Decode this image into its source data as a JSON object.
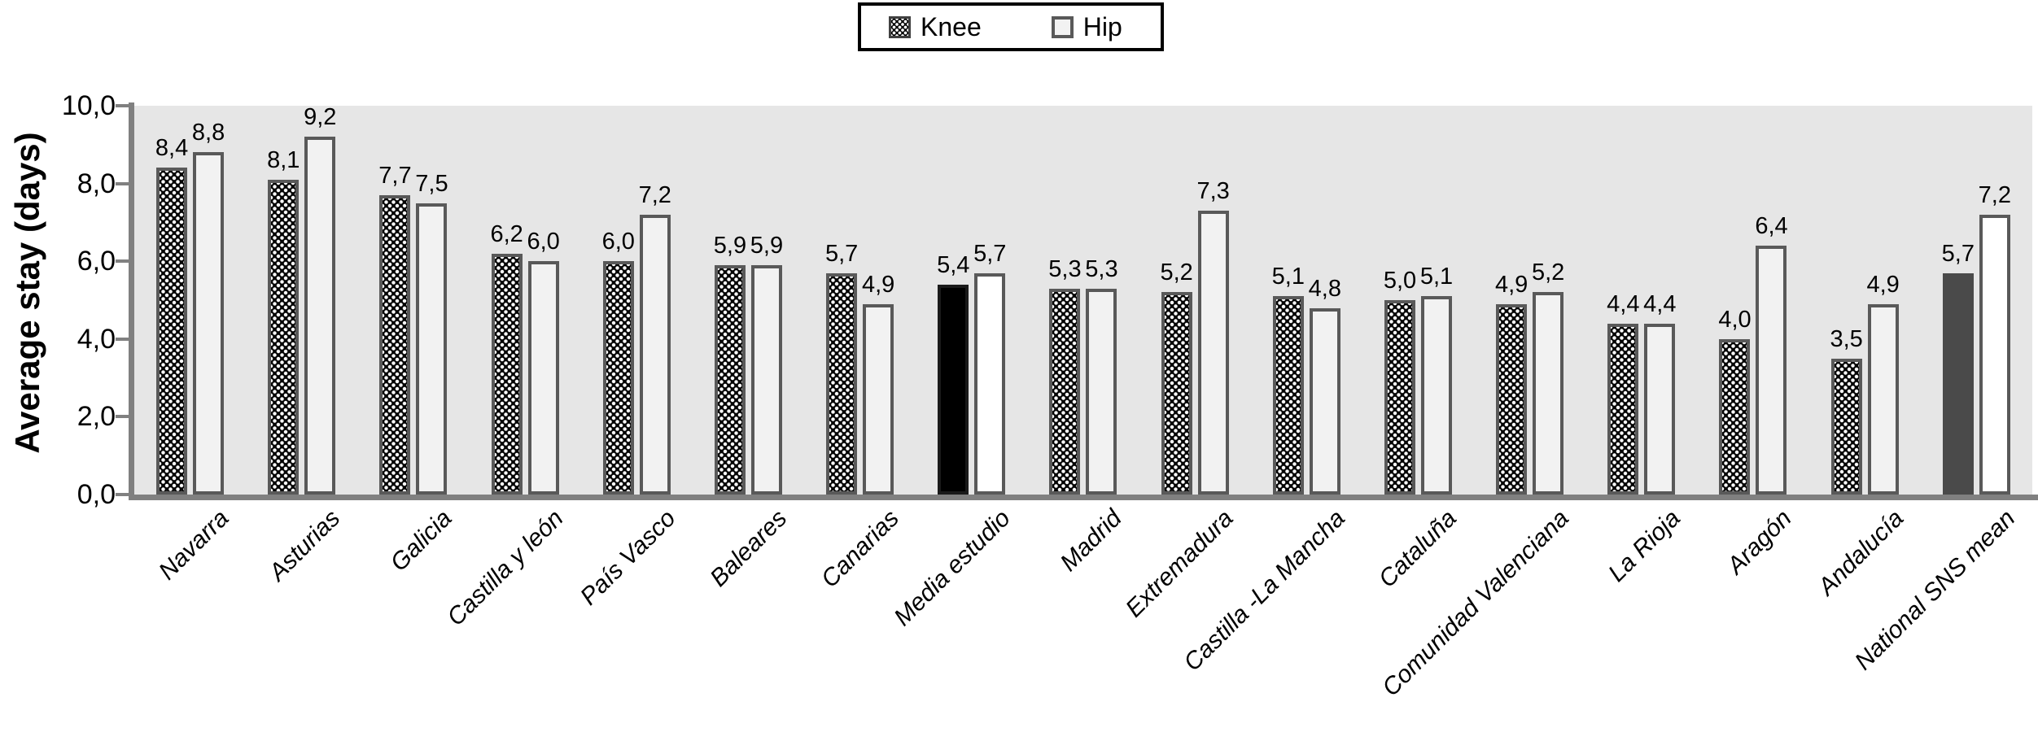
{
  "legend": {
    "items": [
      {
        "label": "Knee",
        "swatch": "knee-pattern-swatch"
      },
      {
        "label": "Hip",
        "swatch": "hip-swatch"
      }
    ]
  },
  "y_axis": {
    "title": "Average stay (days)",
    "tick_labels": [
      "0,0",
      "2,0",
      "4,0",
      "6,0",
      "8,0",
      "10,0"
    ]
  },
  "colors": {
    "plot_background": "#e6e6e6",
    "bar_border": "#595959",
    "hip_fill": "#f2f2f2",
    "knee_fill": "#050505",
    "knee_dot": "#ffffff",
    "media_estudio_knee": "#000000",
    "national_mean_knee": "#4a4a4a",
    "white_hip_fill": "#ffffff",
    "axis_line": "#808080",
    "legend_border": "#000000"
  },
  "chart_data": {
    "type": "bar",
    "title": "",
    "xlabel": "",
    "ylabel": "Average stay (days)",
    "ylim": [
      0,
      10
    ],
    "y_ticks": [
      0,
      2,
      4,
      6,
      8,
      10
    ],
    "decimal_separator": ",",
    "grid": false,
    "legend_position": "top-center",
    "series_names": [
      "Knee",
      "Hip"
    ],
    "groups": [
      {
        "category": "Navarra",
        "knee": 8.4,
        "hip": 8.8
      },
      {
        "category": "Asturias",
        "knee": 8.1,
        "hip": 9.2
      },
      {
        "category": "Galicia",
        "knee": 7.7,
        "hip": 7.5
      },
      {
        "category": "Castilla y león",
        "knee": 6.2,
        "hip": 6.0
      },
      {
        "category": "País Vasco",
        "knee": 6.0,
        "hip": 7.2
      },
      {
        "category": "Baleares",
        "knee": 5.9,
        "hip": 5.9
      },
      {
        "category": "Canarias",
        "knee": 5.7,
        "hip": 4.9
      },
      {
        "category": "Media estudio",
        "knee": 5.4,
        "hip": 5.7,
        "knee_style": "solid-black",
        "hip_style": "white"
      },
      {
        "category": "Madrid",
        "knee": 5.3,
        "hip": 5.3
      },
      {
        "category": "Extremadura",
        "knee": 5.2,
        "hip": 7.3
      },
      {
        "category": "Castilla -La Mancha",
        "knee": 5.1,
        "hip": 4.8
      },
      {
        "category": "Cataluña",
        "knee": 5.0,
        "hip": 5.1
      },
      {
        "category": "Comunidad Valenciana",
        "knee": 4.9,
        "hip": 5.2
      },
      {
        "category": "La Rioja",
        "knee": 4.4,
        "hip": 4.4
      },
      {
        "category": "Aragón",
        "knee": 4.0,
        "hip": 6.4
      },
      {
        "category": "Andalucía",
        "knee": 3.5,
        "hip": 4.9
      },
      {
        "category": "National SNS mean",
        "knee": 5.7,
        "hip": 7.2,
        "knee_style": "solid-darkgray",
        "hip_style": "white"
      }
    ]
  }
}
